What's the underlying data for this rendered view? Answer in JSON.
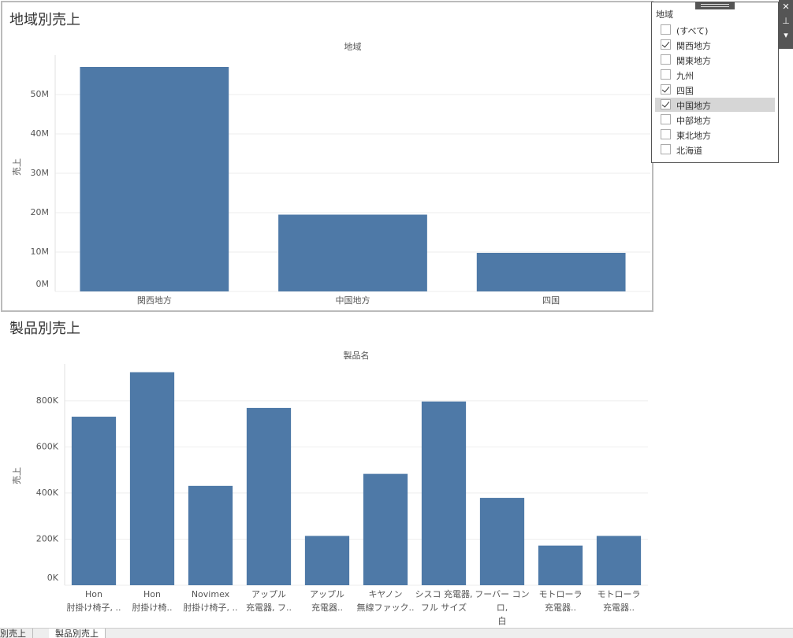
{
  "chart_data": [
    {
      "type": "bar",
      "title": "地域別売上",
      "x_header": "地域",
      "y_label": "売上",
      "categories": [
        "関西地方",
        "中国地方",
        "四国"
      ],
      "values": [
        57000000,
        19500000,
        9800000
      ],
      "color": "#4e79a7",
      "ylim": [
        0,
        60000000
      ],
      "yticks": [
        {
          "value": 0,
          "label": "0M"
        },
        {
          "value": 10000000,
          "label": "10M"
        },
        {
          "value": 20000000,
          "label": "20M"
        },
        {
          "value": 30000000,
          "label": "30M"
        },
        {
          "value": 40000000,
          "label": "40M"
        },
        {
          "value": 50000000,
          "label": "50M"
        }
      ],
      "grid": true
    },
    {
      "type": "bar",
      "title": "製品別売上",
      "x_header": "製品名",
      "y_label": "売上",
      "categories": [
        "Hon\n肘掛け椅子, ..",
        "Hon\n肘掛け椅..",
        "Novimex\n肘掛け椅子, ..",
        "アップル\n充電器, フ..",
        "アップル\n充電器..",
        "キヤノン\n無線ファック..",
        "シスコ 充電器,\nフル サイズ",
        "フーバー コンロ,\n白",
        "モトローラ\n充電器..",
        "モトローラ\n充電器.."
      ],
      "values": [
        731000,
        924000,
        431000,
        769000,
        214000,
        483000,
        797000,
        379000,
        172000,
        214000
      ],
      "color": "#4e79a7",
      "ylim": [
        0,
        960000
      ],
      "yticks": [
        {
          "value": 0,
          "label": "0K"
        },
        {
          "value": 200000,
          "label": "200K"
        },
        {
          "value": 400000,
          "label": "400K"
        },
        {
          "value": 600000,
          "label": "600K"
        },
        {
          "value": 800000,
          "label": "800K"
        }
      ],
      "grid": true
    }
  ],
  "filter": {
    "title": "地域",
    "selected": 5,
    "items": [
      {
        "label": "(すべて)",
        "checked": false
      },
      {
        "label": "関西地方",
        "checked": true
      },
      {
        "label": "関東地方",
        "checked": false
      },
      {
        "label": "九州",
        "checked": false
      },
      {
        "label": "四国",
        "checked": true
      },
      {
        "label": "中国地方",
        "checked": true
      },
      {
        "label": "中部地方",
        "checked": false
      },
      {
        "label": "東北地方",
        "checked": false
      },
      {
        "label": "北海道",
        "checked": false
      }
    ]
  },
  "tabs": [
    "地域別売上",
    "製品別売上"
  ]
}
